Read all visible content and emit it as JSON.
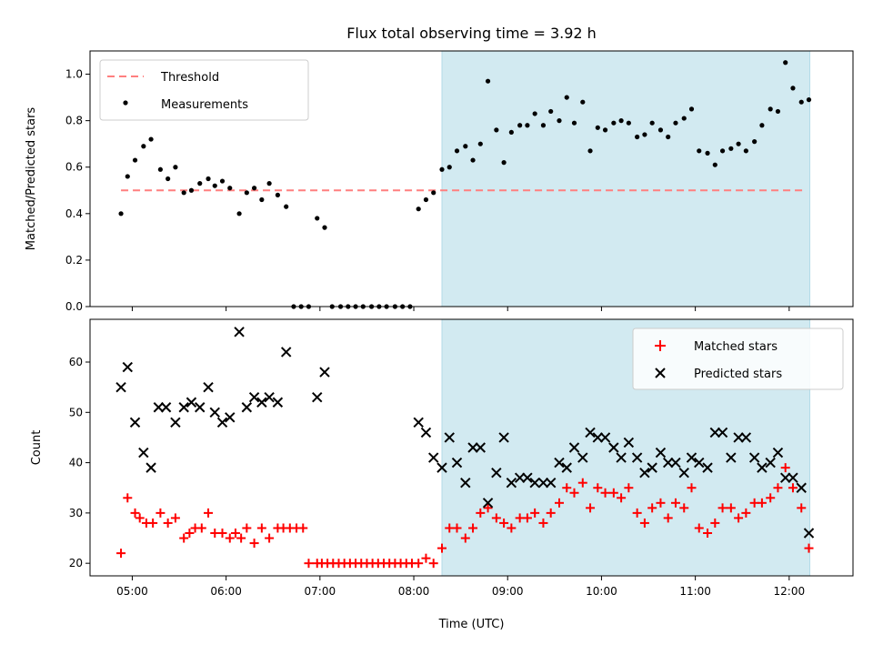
{
  "chart_data": [
    {
      "type": "scatter",
      "title": "Flux total observing time = 3.92 h",
      "xlabel": "",
      "ylabel": "Matched/Predicted stars",
      "ylim": [
        0,
        1.1
      ],
      "yticks": [
        "0.0",
        "0.2",
        "0.4",
        "0.6",
        "0.8",
        "1.0"
      ],
      "xlim_hours": [
        4.55,
        12.68
      ],
      "highlight_span_hours": [
        8.3,
        12.22
      ],
      "highlight_color": "#add8e6",
      "legend_placement": "upper left",
      "threshold": {
        "name": "Threshold",
        "value": 0.5,
        "x_hours": [
          4.88,
          12.18
        ],
        "color": "#ff7f7f"
      },
      "series": [
        {
          "name": "Measurements",
          "color": "#000000",
          "x": [
            4.88,
            4.95,
            5.03,
            5.12,
            5.2,
            5.3,
            5.38,
            5.46,
            5.55,
            5.63,
            5.72,
            5.81,
            5.88,
            5.96,
            6.04,
            6.14,
            6.22,
            6.3,
            6.38,
            6.46,
            6.55,
            6.64,
            6.72,
            6.8,
            6.88,
            6.97,
            7.05,
            7.13,
            7.22,
            7.3,
            7.38,
            7.46,
            7.55,
            7.63,
            7.71,
            7.8,
            7.88,
            7.96,
            8.05,
            8.13,
            8.21,
            8.3,
            8.38,
            8.46,
            8.55,
            8.63,
            8.71,
            8.79,
            8.88,
            8.96,
            9.04,
            9.13,
            9.21,
            9.29,
            9.38,
            9.46,
            9.55,
            9.63,
            9.71,
            9.8,
            9.88,
            9.96,
            10.04,
            10.13,
            10.21,
            10.29,
            10.38,
            10.46,
            10.54,
            10.63,
            10.71,
            10.79,
            10.88,
            10.96,
            11.04,
            11.13,
            11.21,
            11.29,
            11.38,
            11.46,
            11.54,
            11.63,
            11.71,
            11.8,
            11.88,
            11.96,
            12.04,
            12.13,
            12.21
          ],
          "y": [
            0.4,
            0.56,
            0.63,
            0.69,
            0.72,
            0.59,
            0.55,
            0.6,
            0.49,
            0.5,
            0.53,
            0.55,
            0.52,
            0.54,
            0.51,
            0.4,
            0.49,
            0.51,
            0.46,
            0.53,
            0.48,
            0.43,
            0.0,
            0.0,
            0.0,
            0.38,
            0.34,
            0.0,
            0.0,
            0.0,
            0.0,
            0.0,
            0.0,
            0.0,
            0.0,
            0.0,
            0.0,
            0.0,
            0.42,
            0.46,
            0.49,
            0.59,
            0.6,
            0.67,
            0.69,
            0.63,
            0.7,
            0.97,
            0.76,
            0.62,
            0.75,
            0.78,
            0.78,
            0.83,
            0.78,
            0.84,
            0.8,
            0.9,
            0.79,
            0.88,
            0.67,
            0.77,
            0.76,
            0.79,
            0.8,
            0.79,
            0.73,
            0.74,
            0.79,
            0.76,
            0.73,
            0.79,
            0.81,
            0.85,
            0.67,
            0.66,
            0.61,
            0.67,
            0.68,
            0.7,
            0.67,
            0.71,
            0.78,
            0.85,
            0.84,
            1.05,
            0.94,
            0.88,
            0.89
          ]
        }
      ]
    },
    {
      "type": "scatter",
      "title": "",
      "xlabel": "Time (UTC)",
      "ylabel": "Count",
      "ylim": [
        17.5,
        68.5
      ],
      "yticks": [
        "20",
        "30",
        "40",
        "50",
        "60"
      ],
      "xticks": [
        "05:00",
        "06:00",
        "07:00",
        "08:00",
        "09:00",
        "10:00",
        "11:00",
        "12:00"
      ],
      "xtick_hours": [
        5,
        6,
        7,
        8,
        9,
        10,
        11,
        12
      ],
      "xlim_hours": [
        4.55,
        12.68
      ],
      "highlight_span_hours": [
        8.3,
        12.22
      ],
      "highlight_color": "#add8e6",
      "legend_placement": "upper right",
      "series": [
        {
          "name": "Matched stars",
          "color": "#ff0000",
          "marker": "plus",
          "x": [
            4.88,
            4.95,
            5.03,
            5.08,
            5.15,
            5.22,
            5.3,
            5.38,
            5.46,
            5.55,
            5.61,
            5.67,
            5.74,
            5.81,
            5.88,
            5.96,
            6.04,
            6.1,
            6.16,
            6.22,
            6.3,
            6.38,
            6.46,
            6.55,
            6.61,
            6.68,
            6.75,
            6.82,
            6.88,
            6.97,
            7.02,
            7.08,
            7.14,
            7.2,
            7.26,
            7.32,
            7.38,
            7.44,
            7.5,
            7.56,
            7.62,
            7.68,
            7.74,
            7.8,
            7.86,
            7.92,
            7.98,
            8.05,
            8.13,
            8.21,
            8.3,
            8.38,
            8.46,
            8.55,
            8.63,
            8.71,
            8.79,
            8.88,
            8.96,
            9.04,
            9.13,
            9.21,
            9.29,
            9.38,
            9.46,
            9.55,
            9.63,
            9.71,
            9.8,
            9.88,
            9.96,
            10.04,
            10.13,
            10.21,
            10.29,
            10.38,
            10.46,
            10.54,
            10.63,
            10.71,
            10.79,
            10.88,
            10.96,
            11.04,
            11.13,
            11.21,
            11.29,
            11.38,
            11.46,
            11.54,
            11.63,
            11.71,
            11.8,
            11.88,
            11.96,
            12.04,
            12.13,
            12.21
          ],
          "y": [
            22,
            33,
            30,
            29,
            28,
            28,
            30,
            28,
            29,
            25,
            26,
            27,
            27,
            30,
            26,
            26,
            25,
            26,
            25,
            27,
            24,
            27,
            25,
            27,
            27,
            27,
            27,
            27,
            20,
            20,
            20,
            20,
            20,
            20,
            20,
            20,
            20,
            20,
            20,
            20,
            20,
            20,
            20,
            20,
            20,
            20,
            20,
            20,
            21,
            20,
            23,
            27,
            27,
            25,
            27,
            30,
            31,
            29,
            28,
            27,
            29,
            29,
            30,
            28,
            30,
            32,
            35,
            34,
            36,
            31,
            35,
            34,
            34,
            33,
            35,
            30,
            28,
            31,
            32,
            29,
            32,
            31,
            35,
            27,
            26,
            28,
            31,
            31,
            29,
            30,
            32,
            32,
            33,
            35,
            39,
            35,
            31,
            23
          ]
        },
        {
          "name": "Predicted stars",
          "color": "#000000",
          "marker": "x",
          "x": [
            4.88,
            4.95,
            5.03,
            5.12,
            5.2,
            5.28,
            5.36,
            5.46,
            5.55,
            5.63,
            5.72,
            5.81,
            5.88,
            5.96,
            6.04,
            6.14,
            6.22,
            6.3,
            6.38,
            6.46,
            6.55,
            6.64,
            6.97,
            7.05,
            8.05,
            8.13,
            8.21,
            8.3,
            8.38,
            8.46,
            8.55,
            8.63,
            8.71,
            8.79,
            8.88,
            8.96,
            9.04,
            9.13,
            9.21,
            9.29,
            9.38,
            9.46,
            9.55,
            9.63,
            9.71,
            9.8,
            9.88,
            9.96,
            10.04,
            10.13,
            10.21,
            10.29,
            10.38,
            10.46,
            10.54,
            10.63,
            10.71,
            10.79,
            10.88,
            10.96,
            11.04,
            11.13,
            11.21,
            11.29,
            11.38,
            11.46,
            11.54,
            11.63,
            11.71,
            11.8,
            11.88,
            11.96,
            12.04,
            12.13,
            12.21
          ],
          "y": [
            55,
            59,
            48,
            42,
            39,
            51,
            51,
            48,
            51,
            52,
            51,
            55,
            50,
            48,
            49,
            66,
            51,
            53,
            52,
            53,
            52,
            62,
            53,
            58,
            48,
            46,
            41,
            39,
            45,
            40,
            36,
            43,
            43,
            32,
            38,
            45,
            36,
            37,
            37,
            36,
            36,
            36,
            40,
            39,
            43,
            41,
            46,
            45,
            45,
            43,
            41,
            44,
            41,
            38,
            39,
            42,
            40,
            40,
            38,
            41,
            40,
            39,
            46,
            46,
            41,
            45,
            45,
            41,
            39,
            40,
            42,
            37,
            37,
            35,
            26
          ]
        }
      ]
    }
  ]
}
